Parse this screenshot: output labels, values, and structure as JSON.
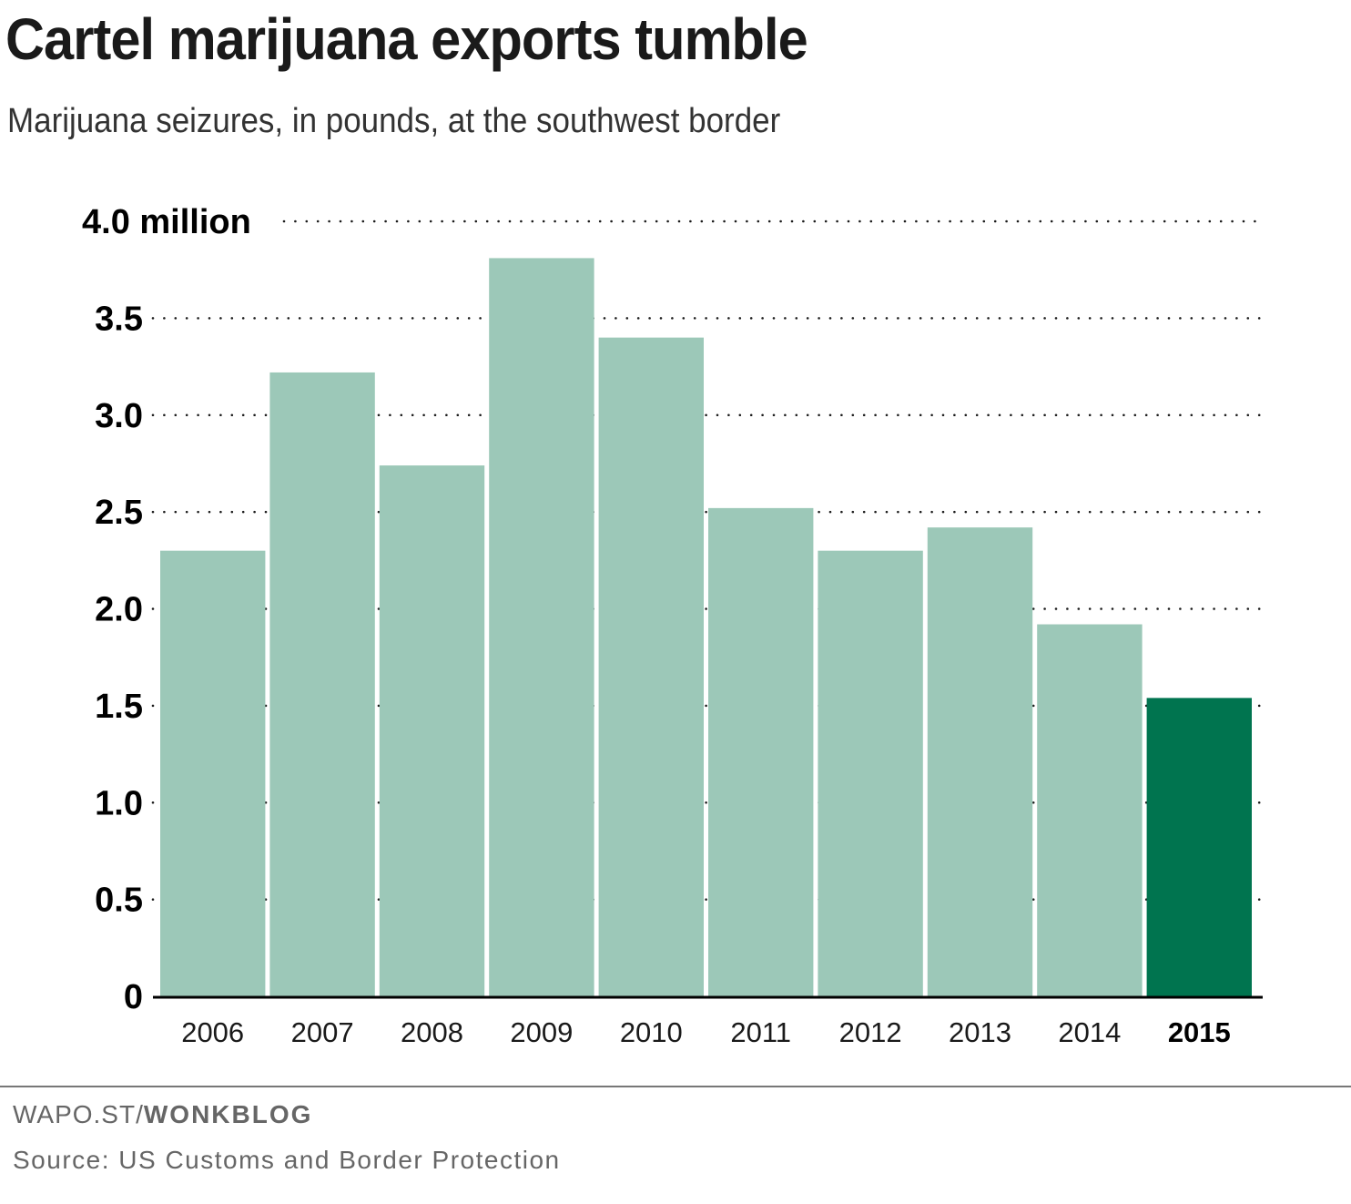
{
  "header": {
    "title": "Cartel marijuana exports tumble",
    "subtitle": "Marijuana seizures, in pounds, at the southwest border"
  },
  "footer": {
    "credit_prefix": "WAPO.ST/",
    "credit_brand": "WONKBLOG",
    "source": "Source: US Customs and Border Protection"
  },
  "colors": {
    "bar": "#9cc8b8",
    "highlight": "#00744f",
    "grid": "#1a1a1a",
    "axis": "#000000"
  },
  "chart_data": {
    "type": "bar",
    "title": "Cartel marijuana exports tumble",
    "subtitle": "Marijuana seizures, in pounds, at the southwest border",
    "xlabel": "",
    "ylabel": "",
    "categories": [
      "2006",
      "2007",
      "2008",
      "2009",
      "2010",
      "2011",
      "2012",
      "2013",
      "2014",
      "2015"
    ],
    "values": [
      2.3,
      3.22,
      2.74,
      3.81,
      3.4,
      2.52,
      2.3,
      2.42,
      1.92,
      1.54
    ],
    "unit": "million pounds",
    "highlight_category": "2015",
    "ylim": [
      0,
      4.0
    ],
    "yticks": [
      0,
      0.5,
      1.0,
      1.5,
      2.0,
      2.5,
      3.0,
      3.5,
      4.0
    ],
    "ytick_labels": [
      "0",
      "0.5",
      "1.0",
      "1.5",
      "2.0",
      "2.5",
      "3.0",
      "3.5",
      "4.0 million"
    ],
    "grid": true,
    "grid_style": "dotted",
    "legend": "none"
  }
}
